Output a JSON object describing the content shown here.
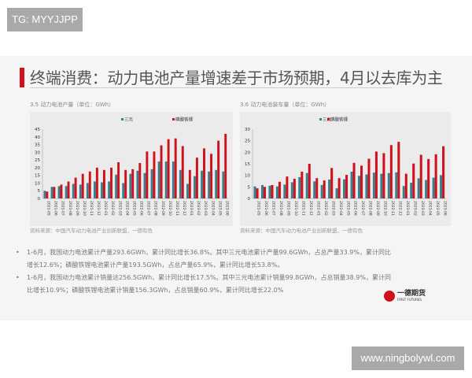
{
  "tag": "TG: MYYJJPP",
  "watermark": "www.ningbolywl.com",
  "title": "终端消费：动力电池产量增速差于市场预期，4月以去库为主",
  "logo": {
    "name": "一德期货",
    "sub": "FIRST FUTURES"
  },
  "bullets": [
    "1-6月，我国动力电池累计产量293.6GWh，累计同比增长36.8%。其中三元电池累计产量99.6GWh，占总产量33.9%，累计同比增长12.6%；磷酸铁锂电池累计产量193.5GWh，占总产量65.9%，累计同比增长53.8%。",
    "1-6月，我国动力电池累计销量达256.5GWh，累计同比增长17.5%。其中三元电池累计销量99.8GWh，占总销量38.9%，累计同比增长10.9%；磷酸铁锂电池累计销量156.3GWh，占总销量60.9%，累计同比增长22.0%"
  ],
  "colors": {
    "ternary": "#3a7f8c",
    "lfp": "#d0101b"
  },
  "chart_data": [
    {
      "type": "bar",
      "title": "3.5 动力电池产量（单位：GWh）",
      "source": "资料来源：中国汽车动力电池产业创新联盟，一德有色",
      "ylim": [
        0,
        45
      ],
      "yticks": [
        0,
        5,
        10,
        15,
        20,
        25,
        30,
        35,
        40,
        45
      ],
      "categories": [
        "2021-05",
        "2021-06",
        "2021-07",
        "2021-08",
        "2021-09",
        "2021-10",
        "2021-11",
        "2021-12",
        "2022-01",
        "2022-02",
        "2022-03",
        "2022-04",
        "2022-05",
        "2022-06",
        "2022-07",
        "2022-08",
        "2022-09",
        "2022-10",
        "2022-11",
        "2022-12",
        "2023-01",
        "2023-02",
        "2023-03",
        "2023-04",
        "2023-05",
        "2023-06"
      ],
      "series": [
        {
          "name": "三元",
          "values": [
            5,
            7.5,
            8,
            8,
            9.5,
            9,
            10,
            11,
            10.5,
            11,
            15.5,
            10,
            16,
            18,
            16.5,
            19,
            24,
            24,
            24,
            18.5,
            9.5,
            14.5,
            18,
            17.5,
            18.5,
            17.5
          ]
        },
        {
          "name": "磷酸铁锂",
          "values": [
            4.5,
            7.5,
            9,
            11,
            13.5,
            16,
            17.5,
            20,
            18.5,
            20,
            23.5,
            18.5,
            19,
            23,
            30.5,
            30.5,
            34.5,
            38.5,
            39,
            34,
            18.5,
            26.5,
            32.5,
            29,
            37.5,
            42
          ]
        }
      ]
    },
    {
      "type": "bar",
      "title": "3.6 动力电池装车量（单位：GWh）",
      "source": "资料来源：中国汽车动力电池产业创新联盟，一德有色",
      "ylim": [
        0,
        30
      ],
      "yticks": [
        0,
        5,
        10,
        15,
        20,
        25,
        30
      ],
      "categories": [
        "2021-05",
        "2021-06",
        "2021-07",
        "2021-08",
        "2021-09",
        "2021-10",
        "2021-11",
        "2021-12",
        "2022-01",
        "2022-02",
        "2022-03",
        "2022-04",
        "2022-05",
        "2022-06",
        "2022-07",
        "2022-08",
        "2022-09",
        "2022-10",
        "2022-11",
        "2022-12",
        "2023-01",
        "2023-02",
        "2023-03",
        "2023-04",
        "2023-05",
        "2023-06"
      ],
      "series": [
        {
          "name": "三元",
          "values": [
            5.2,
            5.8,
            5.5,
            5.2,
            6,
            7,
            9.2,
            11,
            7.4,
            5.8,
            8.2,
            4.4,
            8.3,
            11.6,
            9.8,
            10.4,
            11.2,
            10.7,
            11,
            11.3,
            5.4,
            6.8,
            8.7,
            8,
            9,
            10.1
          ]
        },
        {
          "name": "磷酸铁锂",
          "values": [
            4.4,
            5,
            5.8,
            7.2,
            9.5,
            8.5,
            11.6,
            15,
            8.8,
            7.8,
            13.2,
            8.8,
            10.2,
            15.4,
            14.2,
            17.2,
            20.3,
            19.6,
            23.1,
            24.5,
            10.7,
            15.1,
            18.9,
            17.1,
            19.1,
            22.6
          ]
        }
      ]
    }
  ]
}
